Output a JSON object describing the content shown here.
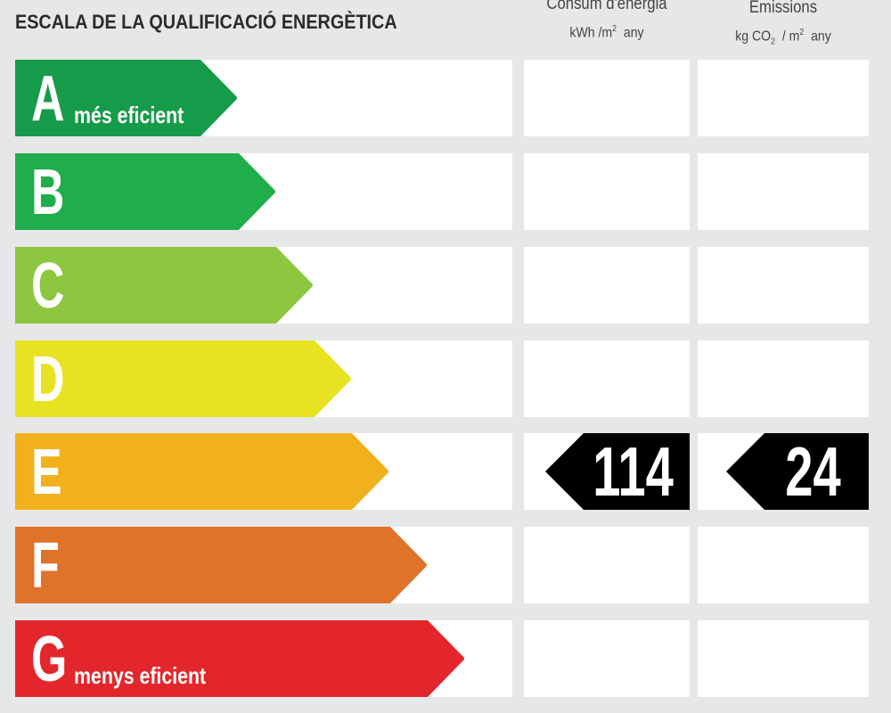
{
  "title": "ESCALA DE LA QUALIFICACIÓ ENERGÈTICA",
  "columns": {
    "consumption": {
      "title": "Consum d'energia",
      "unit_main": "kWh /m",
      "unit_exp": "2",
      "unit_tail": "any"
    },
    "emissions": {
      "title": "Emissions",
      "unit_pre": "kg CO",
      "unit_sub": "2",
      "unit_mid": "/ m",
      "unit_exp": "2",
      "unit_tail": "any"
    }
  },
  "ratings": [
    {
      "letter": "A",
      "label": "més eficient",
      "color": "#169b4a"
    },
    {
      "letter": "B",
      "label": "",
      "color": "#20ad4b"
    },
    {
      "letter": "C",
      "label": "",
      "color": "#8dc63f"
    },
    {
      "letter": "D",
      "label": "",
      "color": "#e8e322"
    },
    {
      "letter": "E",
      "label": "",
      "color": "#f0b11d"
    },
    {
      "letter": "F",
      "label": "",
      "color": "#e0732a"
    },
    {
      "letter": "G",
      "label": "menys eficient",
      "color": "#e3262b"
    }
  ],
  "result": {
    "rating": "E",
    "consumption_value": "114",
    "emissions_value": "24",
    "badge_color": "#000000"
  }
}
